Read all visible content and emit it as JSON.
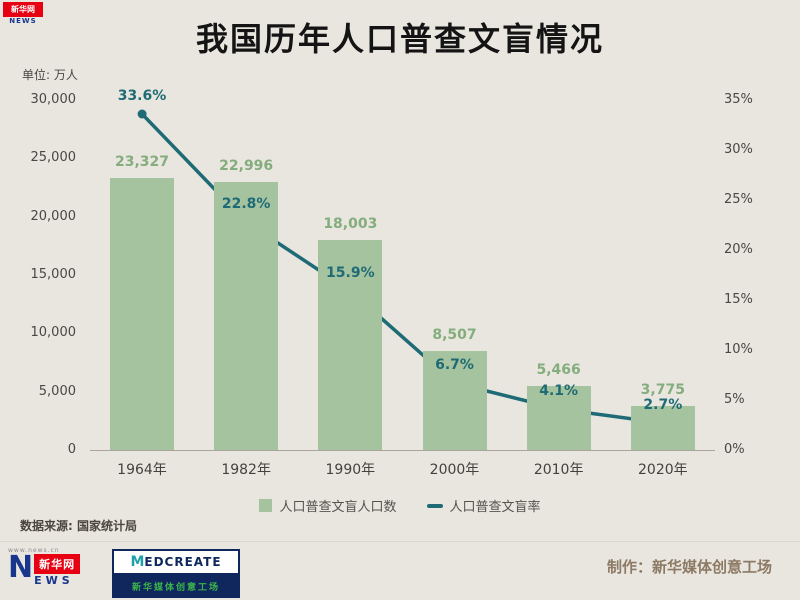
{
  "page": {
    "title": "我国历年人口普查文盲情况",
    "unit_label": "单位: 万人",
    "source": "数据来源: 国家统计局",
    "credit": "制作：新华媒体创意工场"
  },
  "colors": {
    "background": "#e9e6e0",
    "bar": "#a6c39f",
    "bar_label": "#84ad7d",
    "line": "#1f6b75",
    "title_text": "#141414",
    "axis_text": "#4a4742"
  },
  "logos": {
    "corner": {
      "text": "新华网",
      "sub": "NEWS"
    },
    "xinhua": {
      "url": "www.news.cn",
      "n": "N",
      "box": "新华网",
      "ews": "EWS"
    },
    "medcreate": {
      "m": "M",
      "rest": "EDCREATE",
      "sub": "新华媒体创意工场"
    }
  },
  "chart_data": {
    "type": "bar",
    "subtype": "bar+line combo",
    "title": "我国历年人口普查文盲情况",
    "unit": "单位: 万人",
    "grid": false,
    "legend_position": "bottom",
    "categories": [
      "1964年",
      "1982年",
      "1990年",
      "2000年",
      "2010年",
      "2020年"
    ],
    "series": [
      {
        "name": "人口普查文盲人口数",
        "type": "bar",
        "axis": "left",
        "color": "#a6c39f",
        "label_color": "#84ad7d",
        "values": [
          23327,
          22996,
          18003,
          8507,
          5466,
          3775
        ],
        "labels": [
          "23,327",
          "22,996",
          "18,003",
          "8,507",
          "5,466",
          "3,775"
        ]
      },
      {
        "name": "人口普查文盲率",
        "type": "line",
        "axis": "right",
        "color": "#1f6b75",
        "values": [
          33.6,
          22.8,
          15.9,
          6.7,
          4.1,
          2.7
        ],
        "labels": [
          "33.6%",
          "22.8%",
          "15.9%",
          "6.7%",
          "4.1%",
          "2.7%"
        ]
      }
    ],
    "left_axis": {
      "min": 0,
      "max": 30000,
      "tick_step": 5000,
      "tick_labels": [
        "0",
        "5,000",
        "10,000",
        "15,000",
        "20,000",
        "25,000",
        "30,000"
      ]
    },
    "right_axis": {
      "min": 0,
      "max": 35,
      "tick_step": 5,
      "tick_labels": [
        "0%",
        "5%",
        "10%",
        "15%",
        "20%",
        "25%",
        "30%",
        "35%"
      ]
    }
  }
}
